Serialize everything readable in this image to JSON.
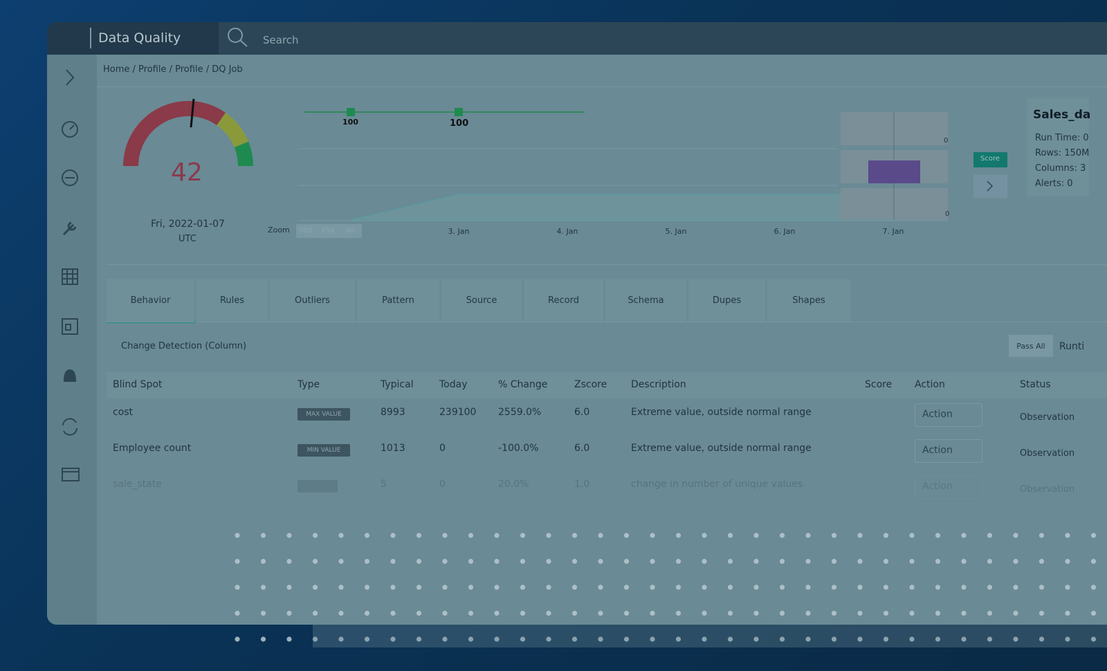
{
  "app": {
    "title": "Data Quality",
    "search": "Search"
  },
  "breadcrumb": [
    "Home",
    "/ Profile",
    "/ Profile",
    "/ DQ Job"
  ],
  "gauge": {
    "score": "42",
    "date": "Fri, 2022-01-07",
    "timezone": "UTC"
  },
  "timeline": {
    "point_labels": [
      "100",
      "100"
    ],
    "zoom": "Zoom",
    "zoom_options": [
      "30d",
      "45d",
      "All"
    ],
    "dates": [
      "3. Jan",
      "4. Jan",
      "5. Jan",
      "6. Jan",
      "7. Jan"
    ],
    "box_labels": [
      "0",
      "0"
    ],
    "score_button": "Score"
  },
  "summary": {
    "title": "Sales_da",
    "lines": [
      "Run Time: 0",
      "Rows: 150M",
      "Columns: 3",
      "Alerts: 0"
    ]
  },
  "tabs": [
    "Behavior",
    "Rules",
    "Outliers",
    "Pattern",
    "Source",
    "Record",
    "Schema",
    "Dupes",
    "Shapes"
  ],
  "section": {
    "title": "Change Detection (Column)",
    "pass_all": "Pass All",
    "runtime": "Runti"
  },
  "table": {
    "headers": [
      "Blind Spot",
      "Type",
      "Typical",
      "Today",
      "% Change",
      "Zscore",
      "Description",
      "Score",
      "Action",
      "Status"
    ],
    "rows": [
      [
        "cost",
        "MAX VALUE",
        "8993",
        "239100",
        "2559.0%",
        "6.0",
        "Extreme value, outside normal range",
        "",
        "Action",
        "Observation"
      ],
      [
        "Employee count",
        "MIN VALUE",
        "1013",
        "0",
        "-100.0%",
        "6.0",
        "Extreme value, outside normal range",
        "",
        "Action",
        "Observation"
      ],
      [
        "sale_state",
        "",
        "5",
        "0",
        "20.0%",
        "1.0",
        "change in number of unique values",
        "",
        "Action",
        "Observation"
      ]
    ]
  }
}
